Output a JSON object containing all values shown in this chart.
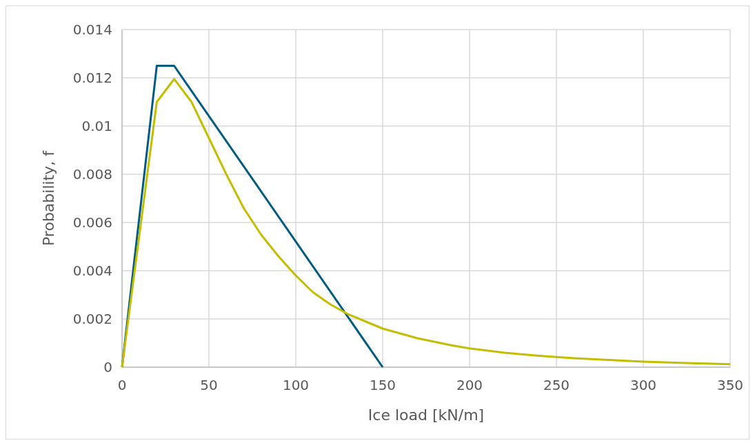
{
  "chart_data": {
    "type": "line",
    "xlabel": "Ice load [kN/m]",
    "ylabel": "Probability, f",
    "xlim": [
      0,
      350
    ],
    "xticks": [
      0,
      50,
      100,
      150,
      200,
      250,
      300,
      350
    ],
    "ylim": [
      0,
      0.014
    ],
    "yticks": [
      0,
      0.002,
      0.004,
      0.006,
      0.008,
      0.01,
      0.012,
      0.014
    ],
    "grid": true,
    "marker": "none",
    "line_style": "solid",
    "series": [
      {
        "color": "#015c82",
        "x": [
          0,
          20,
          30,
          150
        ],
        "values": [
          0,
          0.0125,
          0.0125,
          0
        ]
      },
      {
        "color": "#c4bd00",
        "x": [
          0,
          20,
          30,
          40,
          50,
          60,
          70,
          80,
          90,
          100,
          110,
          120,
          130,
          140,
          150,
          160,
          170,
          180,
          190,
          200,
          220,
          240,
          260,
          280,
          300,
          325,
          350
        ],
        "values": [
          0,
          0.011,
          0.01195,
          0.011,
          0.0095,
          0.008,
          0.0066,
          0.0055,
          0.0046,
          0.0038,
          0.0031,
          0.0026,
          0.0022,
          0.0019,
          0.0016,
          0.0014,
          0.0012,
          0.00105,
          0.0009,
          0.00078,
          0.0006,
          0.00047,
          0.00037,
          0.0003,
          0.00023,
          0.00017,
          0.00012
        ]
      }
    ]
  }
}
